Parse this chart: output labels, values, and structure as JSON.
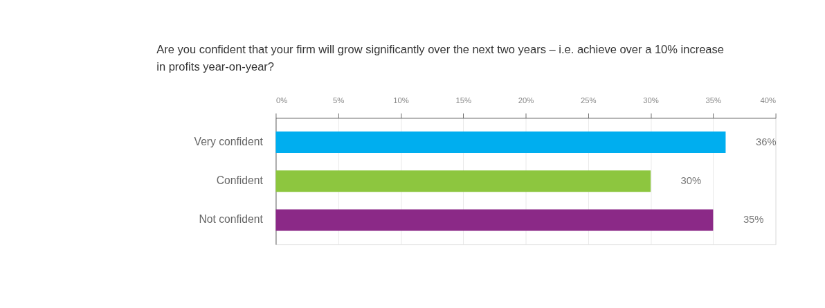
{
  "chart_data": {
    "type": "bar",
    "orientation": "horizontal",
    "title": [
      "Are you confident that your firm will grow significantly over the next two years – i.e. achieve over a 10% increase",
      "in profits year-on-year?"
    ],
    "categories": [
      "Very confident",
      "Confident",
      "Not confident"
    ],
    "values": [
      36,
      30,
      35
    ],
    "colors": [
      "#00aeef",
      "#8dc63f",
      "#8b2987"
    ],
    "xlim": [
      0,
      40
    ],
    "xticks": [
      {
        "value": 0,
        "label": "0%"
      },
      {
        "value": 5,
        "label": "5%"
      },
      {
        "value": 10,
        "label": "10%"
      },
      {
        "value": 15,
        "label": "15%"
      },
      {
        "value": 20,
        "label": "20%"
      },
      {
        "value": 25,
        "label": "25%"
      },
      {
        "value": 30,
        "label": "30%"
      },
      {
        "value": 35,
        "label": "35%"
      },
      {
        "value": 40,
        "label": "40%"
      }
    ],
    "value_labels": [
      "36%",
      "30%",
      "35%"
    ],
    "grid": "x"
  }
}
